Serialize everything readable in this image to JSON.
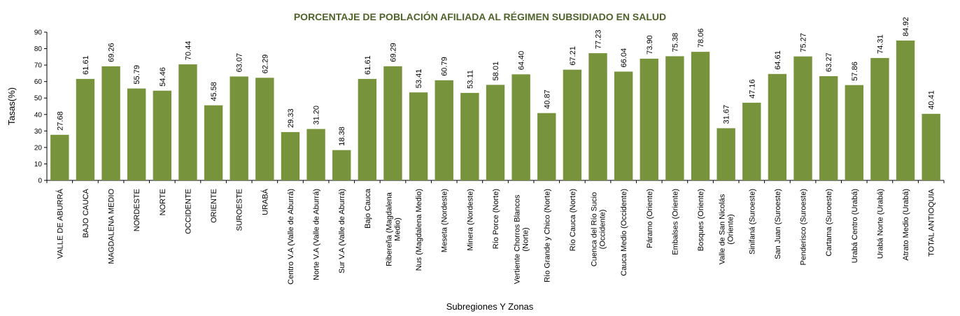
{
  "chart_data": {
    "type": "bar",
    "title": "PORCENTAJE DE POBLACIÓN AFILIADA AL RÉGIMEN SUBSIDIADO EN SALUD",
    "xlabel": "Subregiones Y Zonas",
    "ylabel": "Tasas(%)",
    "ylim": [
      0,
      90
    ],
    "yticks": [
      0,
      10,
      20,
      30,
      40,
      50,
      60,
      70,
      80,
      90
    ],
    "grid": false,
    "legend": "none",
    "bar_color": "#77933C",
    "title_color": "#4F6228",
    "categories": [
      [
        "VALLE DE ABURRÁ"
      ],
      [
        "BAJO CAUCA"
      ],
      [
        "MAGDALENA MEDIO"
      ],
      [
        "NORDESTE"
      ],
      [
        "NORTE"
      ],
      [
        "OCCIDENTE"
      ],
      [
        "ORIENTE"
      ],
      [
        "SUROESTE"
      ],
      [
        "URABÁ"
      ],
      [
        "Centro V.A (Valle de Aburrá)"
      ],
      [
        "Norte V.A (Valle de Aburrá)"
      ],
      [
        "Sur  V.A (Valle de Aburrá)"
      ],
      [
        "Bajo Cauca"
      ],
      [
        "Ribereña  (Magdalena",
        "Medio)"
      ],
      [
        "Nus  (Magdalena Medio)"
      ],
      [
        "Meseta  (Nordeste)"
      ],
      [
        "Minera  (Nordeste)"
      ],
      [
        "Río Porce   (Norte)"
      ],
      [
        "Vertiente Chorros Blancos",
        "(Norte)"
      ],
      [
        "Río Grande y Chico  (Norte)"
      ],
      [
        "Río Cauca  (Norte)"
      ],
      [
        "Cuenca del Río Sucio",
        "(Occidente)"
      ],
      [
        "Cauca Medio  (Occidente)"
      ],
      [
        "Páramo   (Oriente)"
      ],
      [
        "Embalses  (Oriente)"
      ],
      [
        "Bosques  (Oriente)"
      ],
      [
        "Valle de San Nicolás",
        "(Oriente)"
      ],
      [
        "Sinifaná  (Suroeste)"
      ],
      [
        "San Juan  (Suroeste)"
      ],
      [
        "Penderisco  (Suroeste)"
      ],
      [
        "Cartama   (Suroeste)"
      ],
      [
        "Urabá Centro  (Urabá)"
      ],
      [
        "Urabá Norte  (Urabá)"
      ],
      [
        "Atrato Medio  (Urabá)"
      ],
      [
        "TOTAL ANTIOQUIA"
      ]
    ],
    "values": [
      27.68,
      61.61,
      69.26,
      55.79,
      54.46,
      70.44,
      45.58,
      63.07,
      62.29,
      29.33,
      31.2,
      18.38,
      61.61,
      69.29,
      53.41,
      60.79,
      53.11,
      58.01,
      64.4,
      40.87,
      67.21,
      77.23,
      66.04,
      73.9,
      75.38,
      78.06,
      31.67,
      47.16,
      64.61,
      75.27,
      63.27,
      57.86,
      74.31,
      84.92,
      40.41
    ]
  }
}
